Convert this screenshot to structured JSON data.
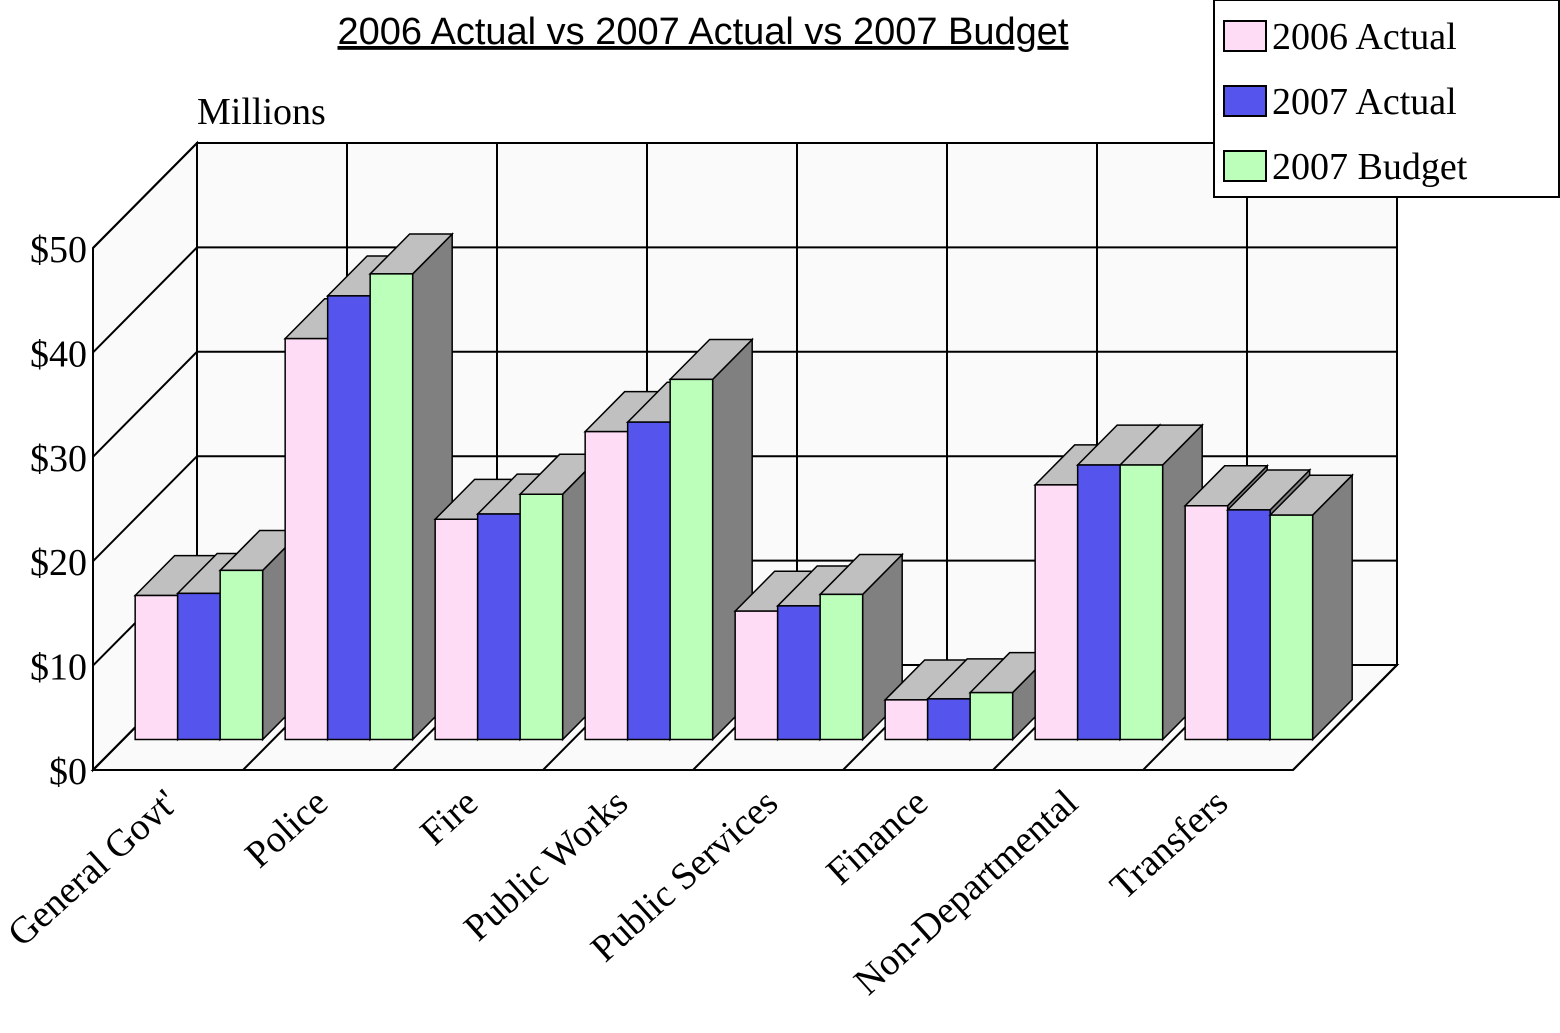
{
  "chart_data": {
    "type": "bar3d",
    "title": "2006 Actual vs 2007 Actual vs 2007 Budget",
    "y_label": "Millions",
    "categories": [
      "General Govt'",
      "Police",
      "Fire",
      "Public Works",
      "Public Services",
      "Finance",
      "Non-Departmental",
      "Transfers"
    ],
    "series": [
      {
        "name": "2006 Actual",
        "color": "#ffdcf6",
        "values": [
          13.8,
          38.4,
          21.1,
          29.5,
          12.3,
          3.8,
          24.4,
          22.4
        ]
      },
      {
        "name": "2007 Actual",
        "color": "#5555ee",
        "values": [
          14.0,
          42.5,
          21.6,
          30.4,
          12.8,
          3.9,
          26.3,
          22.0
        ]
      },
      {
        "name": "2007 Budget",
        "color": "#bbffbb",
        "values": [
          16.2,
          44.6,
          23.5,
          34.5,
          13.9,
          4.5,
          26.3,
          21.5
        ]
      }
    ],
    "ylim": [
      0,
      50
    ],
    "yticks": [
      {
        "value": 0,
        "label": "$0"
      },
      {
        "value": 10,
        "label": "$10"
      },
      {
        "value": 20,
        "label": "$20"
      },
      {
        "value": 30,
        "label": "$30"
      },
      {
        "value": 40,
        "label": "$40"
      },
      {
        "value": 50,
        "label": "$50"
      }
    ],
    "grid": true,
    "legend": "top-right"
  }
}
